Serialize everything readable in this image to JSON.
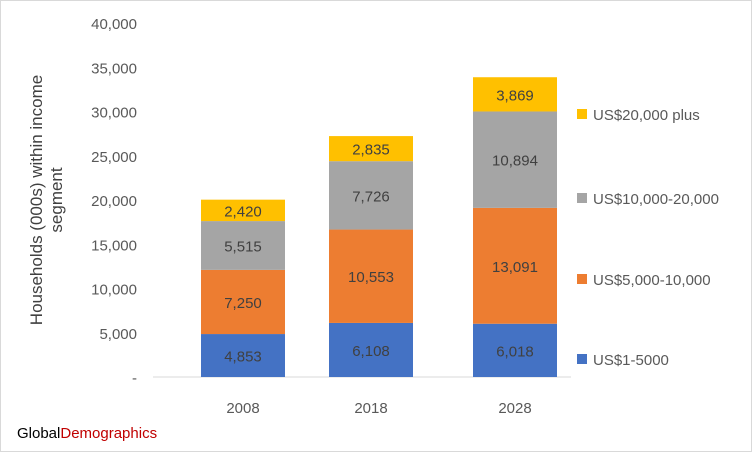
{
  "chart_data": {
    "type": "bar",
    "stacked": true,
    "title": "",
    "xlabel": "",
    "ylabel": "Households (000s) within income segment",
    "ylim": [
      0,
      40000
    ],
    "ytick_step": 5000,
    "ytick_labels": [
      "-",
      "5,000",
      "10,000",
      "15,000",
      "20,000",
      "25,000",
      "30,000",
      "35,000",
      "40,000"
    ],
    "categories": [
      "2008",
      "2018",
      "2028"
    ],
    "series": [
      {
        "name": "US$1-5000",
        "color": "#4472c4",
        "values": [
          4853,
          6108,
          6018
        ],
        "labels": [
          "4,853",
          "6,108",
          "6,018"
        ]
      },
      {
        "name": "US$5,000-10,000",
        "color": "#ed7d31",
        "values": [
          7250,
          10553,
          13091
        ],
        "labels": [
          "7,250",
          "10,553",
          "13,091"
        ]
      },
      {
        "name": "US$10,000-20,000",
        "color": "#a5a5a5",
        "values": [
          5515,
          7726,
          10894
        ],
        "labels": [
          "5,515",
          "7,726",
          "10,894"
        ]
      },
      {
        "name": "US$20,000 plus",
        "color": "#ffc000",
        "values": [
          2420,
          2835,
          3869
        ],
        "labels": [
          "2,420",
          "2,835",
          "3,869"
        ]
      }
    ],
    "legend_position": "right",
    "grid": false
  },
  "watermark": {
    "part1": "Global",
    "part2": "Demographics"
  }
}
